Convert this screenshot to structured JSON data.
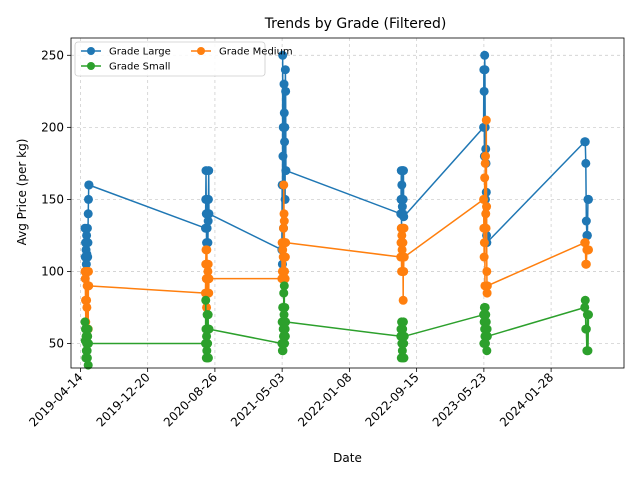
{
  "chart_data": {
    "type": "line",
    "title": "Trends by Grade (Filtered)",
    "xlabel": "Date",
    "ylabel": "Avg Price (per kg)",
    "x_ticks": [
      "2019-04-14",
      "2019-12-20",
      "2020-08-26",
      "2021-05-03",
      "2022-01-08",
      "2022-09-15",
      "2023-05-23",
      "2024-01-28"
    ],
    "xlim": [
      "2019-03-10",
      "2024-10-25"
    ],
    "ylim": [
      33,
      262
    ],
    "y_ticks": [
      50,
      100,
      150,
      200,
      250
    ],
    "grid": true,
    "legend_position": "top-left",
    "legend_columns": 2,
    "series": [
      {
        "name": "Grade Large",
        "color": "#1f77b4",
        "points": [
          [
            "2019-05-01",
            130
          ],
          [
            "2019-05-02",
            110
          ],
          [
            "2019-05-03",
            120
          ],
          [
            "2019-05-04",
            100
          ],
          [
            "2019-05-05",
            115
          ],
          [
            "2019-05-06",
            105
          ],
          [
            "2019-05-07",
            125
          ],
          [
            "2019-05-08",
            112
          ],
          [
            "2019-05-09",
            100
          ],
          [
            "2019-05-10",
            130
          ],
          [
            "2019-05-11",
            110
          ],
          [
            "2019-05-12",
            120
          ],
          [
            "2019-05-13",
            140
          ],
          [
            "2019-05-14",
            150
          ],
          [
            "2019-05-15",
            160
          ],
          [
            "2019-05-16",
            160
          ],
          [
            "2020-07-22",
            130
          ],
          [
            "2020-07-23",
            150
          ],
          [
            "2020-07-24",
            170
          ],
          [
            "2020-07-25",
            140
          ],
          [
            "2020-07-26",
            120
          ],
          [
            "2020-07-27",
            150
          ],
          [
            "2020-07-28",
            130
          ],
          [
            "2020-07-29",
            120
          ],
          [
            "2020-07-30",
            140
          ],
          [
            "2020-07-31",
            120
          ],
          [
            "2020-08-01",
            135
          ],
          [
            "2020-08-02",
            150
          ],
          [
            "2020-08-03",
            170
          ],
          [
            "2020-08-04",
            140
          ],
          [
            "2021-05-02",
            115
          ],
          [
            "2021-05-03",
            160
          ],
          [
            "2021-05-04",
            105
          ],
          [
            "2021-05-05",
            250
          ],
          [
            "2021-05-06",
            180
          ],
          [
            "2021-05-07",
            200
          ],
          [
            "2021-05-08",
            130
          ],
          [
            "2021-05-09",
            120
          ],
          [
            "2021-05-10",
            230
          ],
          [
            "2021-05-11",
            210
          ],
          [
            "2021-05-12",
            190
          ],
          [
            "2021-05-13",
            200
          ],
          [
            "2021-05-14",
            150
          ],
          [
            "2021-05-15",
            240
          ],
          [
            "2021-05-16",
            225
          ],
          [
            "2021-05-17",
            170
          ],
          [
            "2022-07-18",
            140
          ],
          [
            "2022-07-19",
            150
          ],
          [
            "2022-07-20",
            170
          ],
          [
            "2022-07-21",
            130
          ],
          [
            "2022-07-22",
            160
          ],
          [
            "2022-07-23",
            150
          ],
          [
            "2022-07-24",
            145
          ],
          [
            "2022-07-25",
            170
          ],
          [
            "2022-07-26",
            140
          ],
          [
            "2022-07-27",
            150
          ],
          [
            "2022-07-28",
            170
          ],
          [
            "2022-07-29",
            138
          ],
          [
            "2023-05-22",
            200
          ],
          [
            "2023-05-23",
            240
          ],
          [
            "2023-05-24",
            225
          ],
          [
            "2023-05-25",
            180
          ],
          [
            "2023-05-26",
            250
          ],
          [
            "2023-05-27",
            240
          ],
          [
            "2023-05-28",
            200
          ],
          [
            "2023-05-29",
            150
          ],
          [
            "2023-05-30",
            185
          ],
          [
            "2023-05-31",
            175
          ],
          [
            "2023-06-01",
            155
          ],
          [
            "2023-06-02",
            125
          ],
          [
            "2023-06-03",
            120
          ],
          [
            "2024-06-01",
            190
          ],
          [
            "2024-06-03",
            190
          ],
          [
            "2024-06-05",
            175
          ],
          [
            "2024-06-07",
            135
          ],
          [
            "2024-06-09",
            125
          ],
          [
            "2024-06-11",
            125
          ],
          [
            "2024-06-13",
            150
          ],
          [
            "2024-06-15",
            150
          ]
        ]
      },
      {
        "name": "Grade Medium",
        "color": "#ff7f0e",
        "points": [
          [
            "2019-05-01",
            100
          ],
          [
            "2019-05-02",
            95
          ],
          [
            "2019-05-03",
            80
          ],
          [
            "2019-05-04",
            65
          ],
          [
            "2019-05-05",
            100
          ],
          [
            "2019-05-06",
            60
          ],
          [
            "2019-05-07",
            80
          ],
          [
            "2019-05-08",
            75
          ],
          [
            "2019-05-09",
            90
          ],
          [
            "2019-05-10",
            55
          ],
          [
            "2019-05-11",
            100
          ],
          [
            "2019-05-12",
            90
          ],
          [
            "2019-05-13",
            60
          ],
          [
            "2019-05-14",
            100
          ],
          [
            "2019-05-15",
            90
          ],
          [
            "2020-07-22",
            85
          ],
          [
            "2020-07-23",
            105
          ],
          [
            "2020-07-24",
            115
          ],
          [
            "2020-07-25",
            95
          ],
          [
            "2020-07-26",
            75
          ],
          [
            "2020-07-27",
            115
          ],
          [
            "2020-07-28",
            105
          ],
          [
            "2020-07-29",
            95
          ],
          [
            "2020-07-30",
            85
          ],
          [
            "2020-07-31",
            100
          ],
          [
            "2020-08-01",
            105
          ],
          [
            "2020-08-02",
            95
          ],
          [
            "2020-08-03",
            85
          ],
          [
            "2020-08-04",
            95
          ],
          [
            "2021-05-02",
            95
          ],
          [
            "2021-05-03",
            120
          ],
          [
            "2021-05-04",
            100
          ],
          [
            "2021-05-05",
            115
          ],
          [
            "2021-05-06",
            95
          ],
          [
            "2021-05-07",
            110
          ],
          [
            "2021-05-08",
            130
          ],
          [
            "2021-05-09",
            160
          ],
          [
            "2021-05-10",
            140
          ],
          [
            "2021-05-11",
            135
          ],
          [
            "2021-05-12",
            100
          ],
          [
            "2021-05-13",
            120
          ],
          [
            "2021-05-14",
            95
          ],
          [
            "2021-05-15",
            110
          ],
          [
            "2021-05-16",
            120
          ],
          [
            "2022-07-18",
            110
          ],
          [
            "2022-07-19",
            120
          ],
          [
            "2022-07-20",
            130
          ],
          [
            "2022-07-21",
            100
          ],
          [
            "2022-07-22",
            125
          ],
          [
            "2022-07-23",
            115
          ],
          [
            "2022-07-24",
            130
          ],
          [
            "2022-07-25",
            100
          ],
          [
            "2022-07-26",
            120
          ],
          [
            "2022-07-27",
            80
          ],
          [
            "2022-07-28",
            130
          ],
          [
            "2022-07-29",
            100
          ],
          [
            "2022-07-30",
            130
          ],
          [
            "2022-07-31",
            110
          ],
          [
            "2023-05-22",
            150
          ],
          [
            "2023-05-23",
            130
          ],
          [
            "2023-05-24",
            110
          ],
          [
            "2023-05-25",
            120
          ],
          [
            "2023-05-26",
            165
          ],
          [
            "2023-05-27",
            90
          ],
          [
            "2023-05-28",
            175
          ],
          [
            "2023-05-29",
            180
          ],
          [
            "2023-05-30",
            140
          ],
          [
            "2023-05-31",
            130
          ],
          [
            "2023-06-01",
            205
          ],
          [
            "2023-06-02",
            145
          ],
          [
            "2023-06-03",
            100
          ],
          [
            "2023-06-04",
            85
          ],
          [
            "2023-06-05",
            90
          ],
          [
            "2024-06-01",
            120
          ],
          [
            "2024-06-03",
            120
          ],
          [
            "2024-06-05",
            105
          ],
          [
            "2024-06-07",
            105
          ],
          [
            "2024-06-09",
            115
          ],
          [
            "2024-06-11",
            115
          ],
          [
            "2024-06-13",
            115
          ],
          [
            "2024-06-15",
            115
          ]
        ]
      },
      {
        "name": "Grade Small",
        "color": "#2ca02c",
        "points": [
          [
            "2019-05-01",
            65
          ],
          [
            "2019-05-02",
            52
          ],
          [
            "2019-05-03",
            60
          ],
          [
            "2019-05-04",
            40
          ],
          [
            "2019-05-05",
            55
          ],
          [
            "2019-05-06",
            45
          ],
          [
            "2019-05-07",
            50
          ],
          [
            "2019-05-08",
            60
          ],
          [
            "2019-05-09",
            45
          ],
          [
            "2019-05-10",
            40
          ],
          [
            "2019-05-11",
            55
          ],
          [
            "2019-05-12",
            60
          ],
          [
            "2019-05-13",
            35
          ],
          [
            "2019-05-14",
            50
          ],
          [
            "2020-07-22",
            50
          ],
          [
            "2020-07-23",
            80
          ],
          [
            "2020-07-24",
            60
          ],
          [
            "2020-07-25",
            40
          ],
          [
            "2020-07-26",
            55
          ],
          [
            "2020-07-27",
            45
          ],
          [
            "2020-07-28",
            70
          ],
          [
            "2020-07-29",
            40
          ],
          [
            "2020-07-30",
            50
          ],
          [
            "2020-07-31",
            60
          ],
          [
            "2020-08-01",
            70
          ],
          [
            "2020-08-02",
            40
          ],
          [
            "2020-08-03",
            60
          ],
          [
            "2020-08-04",
            60
          ],
          [
            "2021-05-02",
            50
          ],
          [
            "2021-05-03",
            65
          ],
          [
            "2021-05-04",
            45
          ],
          [
            "2021-05-05",
            75
          ],
          [
            "2021-05-06",
            45
          ],
          [
            "2021-05-07",
            60
          ],
          [
            "2021-05-08",
            55
          ],
          [
            "2021-05-09",
            85
          ],
          [
            "2021-05-10",
            70
          ],
          [
            "2021-05-11",
            90
          ],
          [
            "2021-05-12",
            50
          ],
          [
            "2021-05-13",
            75
          ],
          [
            "2021-05-14",
            60
          ],
          [
            "2021-05-15",
            55
          ],
          [
            "2021-05-16",
            65
          ],
          [
            "2022-07-18",
            55
          ],
          [
            "2022-07-19",
            60
          ],
          [
            "2022-07-20",
            40
          ],
          [
            "2022-07-21",
            65
          ],
          [
            "2022-07-22",
            50
          ],
          [
            "2022-07-23",
            55
          ],
          [
            "2022-07-24",
            45
          ],
          [
            "2022-07-25",
            60
          ],
          [
            "2022-07-26",
            40
          ],
          [
            "2022-07-27",
            55
          ],
          [
            "2022-07-28",
            65
          ],
          [
            "2022-07-29",
            50
          ],
          [
            "2022-07-30",
            40
          ],
          [
            "2022-07-31",
            55
          ],
          [
            "2023-05-22",
            70
          ],
          [
            "2023-05-23",
            50
          ],
          [
            "2023-05-24",
            65
          ],
          [
            "2023-05-25",
            75
          ],
          [
            "2023-05-26",
            60
          ],
          [
            "2023-05-27",
            55
          ],
          [
            "2023-05-28",
            75
          ],
          [
            "2023-05-29",
            50
          ],
          [
            "2023-05-30",
            70
          ],
          [
            "2023-05-31",
            60
          ],
          [
            "2023-06-01",
            65
          ],
          [
            "2023-06-02",
            55
          ],
          [
            "2023-06-03",
            45
          ],
          [
            "2023-06-04",
            60
          ],
          [
            "2023-06-05",
            55
          ],
          [
            "2024-06-01",
            75
          ],
          [
            "2024-06-03",
            80
          ],
          [
            "2024-06-05",
            60
          ],
          [
            "2024-06-07",
            60
          ],
          [
            "2024-06-09",
            45
          ],
          [
            "2024-06-11",
            70
          ],
          [
            "2024-06-13",
            45
          ],
          [
            "2024-06-15",
            70
          ]
        ]
      }
    ]
  }
}
